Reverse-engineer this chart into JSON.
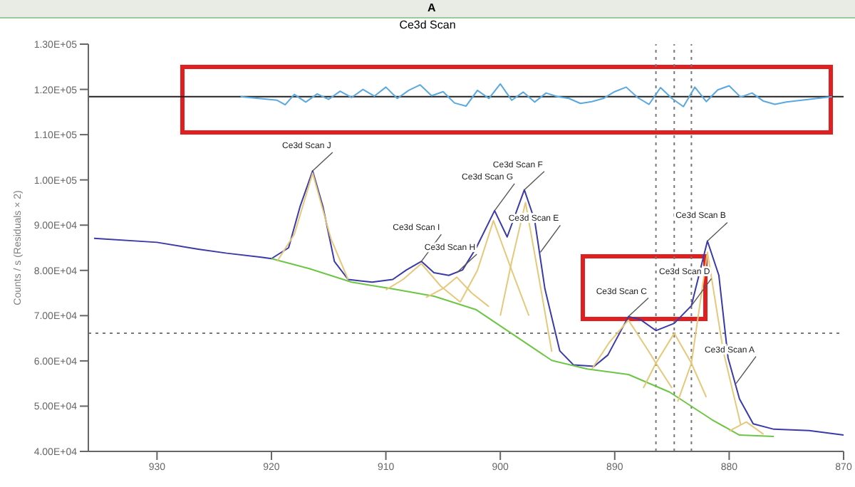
{
  "chart_data": {
    "type": "line",
    "title": "Ce3d Scan",
    "ylabel": "Counts / s  (Residuals × 2)",
    "xlim": [
      936,
      870
    ],
    "xticks": [
      930,
      920,
      910,
      900,
      890,
      880,
      870
    ],
    "ylim": [
      40000,
      130000
    ],
    "yticks": [
      {
        "value": 40000,
        "label": "4.00E+04"
      },
      {
        "value": 50000,
        "label": "5.00E+04"
      },
      {
        "value": 60000,
        "label": "6.00E+04"
      },
      {
        "value": 70000,
        "label": "7.00E+04"
      },
      {
        "value": 80000,
        "label": "8.00E+04"
      },
      {
        "value": 90000,
        "label": "9.00E+04"
      },
      {
        "value": 100000,
        "label": "1.00E+05"
      },
      {
        "value": 110000,
        "label": "1.10E+05"
      },
      {
        "value": 120000,
        "label": "1.20E+05"
      },
      {
        "value": 130000,
        "label": "1.30E+05"
      }
    ],
    "grid": false,
    "legend": false,
    "marker": "none",
    "line_style": "solid",
    "series": [
      {
        "color": "#3a3aa8",
        "x": [
          935.5,
          930,
          926.4,
          923.9,
          920.9,
          920,
          918.5,
          917.5,
          916.4,
          915.5,
          914.5,
          913.3,
          911.2,
          909.4,
          908.2,
          906.9,
          905.8,
          904.5,
          903.3,
          902.1,
          900.5,
          899.4,
          897.9,
          897,
          896.1,
          894.8,
          893.6,
          891.8,
          890.6,
          888.8,
          887.8,
          886.4,
          884.8,
          883.3,
          881.9,
          880.9,
          880.1,
          879.1,
          877.9,
          876.1,
          873,
          870
        ],
        "values": [
          87100,
          86200,
          84700,
          83800,
          82900,
          82600,
          85000,
          94100,
          102000,
          94100,
          82000,
          78000,
          77400,
          78000,
          80100,
          82000,
          79500,
          78900,
          80100,
          85000,
          93200,
          87400,
          97800,
          91100,
          75900,
          62200,
          59100,
          58800,
          61300,
          69800,
          69200,
          66700,
          68300,
          72200,
          86500,
          78900,
          60700,
          51600,
          46100,
          44900,
          44600,
          43600
        ]
      },
      {
        "color": "#6cc644",
        "x": [
          920,
          916.7,
          913,
          909.4,
          905.8,
          902.1,
          898.5,
          895.5,
          892.4,
          888.8,
          885.2,
          881.5,
          879.1,
          876.1
        ],
        "values": [
          82600,
          80400,
          77400,
          75900,
          74300,
          71300,
          65200,
          60100,
          58200,
          57000,
          53100,
          47000,
          43600,
          43300
        ]
      },
      {
        "color": "#e6c87a",
        "x": [
          919.5,
          918,
          916.4,
          914.8,
          913.3
        ],
        "values": [
          82000,
          88000,
          101500,
          87000,
          78000
        ]
      },
      {
        "color": "#e6c87a",
        "x": [
          910,
          908.5,
          906.9,
          905.2,
          903.5
        ],
        "values": [
          75700,
          78000,
          81500,
          76500,
          73000
        ]
      },
      {
        "color": "#e6c87a",
        "x": [
          906.5,
          905,
          903.8,
          902.5,
          901
        ],
        "values": [
          74000,
          76000,
          78500,
          75000,
          72000
        ]
      },
      {
        "color": "#e6c87a",
        "x": [
          903.5,
          902,
          900.6,
          899,
          897.5
        ],
        "values": [
          73000,
          80000,
          91000,
          80000,
          70000
        ]
      },
      {
        "color": "#e6c87a",
        "x": [
          900,
          899,
          897.8,
          896.6,
          895.5
        ],
        "values": [
          70000,
          82000,
          95000,
          78000,
          62000
        ]
      },
      {
        "color": "#e6c87a",
        "x": [
          892,
          890.5,
          888.8,
          887,
          886.4,
          885
        ],
        "values": [
          58200,
          64000,
          69000,
          62000,
          59500,
          54000
        ]
      },
      {
        "color": "#e6c87a",
        "x": [
          887.5,
          886.4,
          884.8,
          883.3,
          882
        ],
        "values": [
          54000,
          59500,
          66100,
          59500,
          52000
        ]
      },
      {
        "color": "#e6c87a",
        "x": [
          884.5,
          883.3,
          881.9,
          880.5,
          879
        ],
        "values": [
          51000,
          59500,
          84000,
          62000,
          46000
        ]
      },
      {
        "color": "#e6c87a",
        "x": [
          880,
          878.5,
          877
        ],
        "values": [
          44500,
          46500,
          43800
        ]
      },
      {
        "color": "#5aa8e0",
        "x": [
          922.7,
          919.5,
          918.8,
          918,
          917,
          916,
          915,
          914,
          913,
          912,
          911,
          910,
          909,
          908,
          907,
          906,
          905,
          904,
          903,
          902,
          901,
          900,
          899,
          898,
          897,
          896,
          895,
          894,
          893,
          892,
          891,
          890,
          889,
          888,
          887,
          886,
          885,
          884,
          883,
          882,
          881,
          880,
          879,
          878,
          877,
          876,
          875,
          873,
          871
        ],
        "values": [
          118400,
          117600,
          116600,
          118900,
          117200,
          119000,
          117800,
          119600,
          118200,
          120000,
          118500,
          120500,
          118000,
          119800,
          121000,
          118600,
          119500,
          117000,
          116300,
          119800,
          118000,
          121200,
          117600,
          119400,
          117200,
          119200,
          118400,
          118000,
          116900,
          117300,
          118000,
          119500,
          120500,
          118200,
          116700,
          120400,
          118000,
          116200,
          120500,
          117300,
          119900,
          120800,
          118300,
          119200,
          117400,
          116700,
          117200,
          117800,
          118400
        ]
      }
    ],
    "ref_lines": [
      {
        "axis": "y",
        "value": 118400,
        "color": "#222222",
        "line_style": "solid"
      },
      {
        "axis": "y",
        "value": 66100,
        "color": "#777777",
        "line_style": "dotted"
      },
      {
        "axis": "x",
        "value": 886.4,
        "color": "#777777",
        "line_style": "dotted"
      },
      {
        "axis": "x",
        "value": 884.8,
        "color": "#777777",
        "line_style": "dotted"
      },
      {
        "axis": "x",
        "value": 883.3,
        "color": "#777777",
        "line_style": "dotted"
      }
    ],
    "annotations": [
      "A",
      {
        "text": "Ce3d Scan J",
        "x": 916.4,
        "y": 102000
      },
      {
        "text": "Ce3d Scan I",
        "x": 906.9,
        "y": 82000
      },
      {
        "text": "Ce3d Scan H",
        "x": 903.8,
        "y": 79500
      },
      {
        "text": "Ce3d Scan G",
        "x": 900.5,
        "y": 93200
      },
      {
        "text": "Ce3d Scan F",
        "x": 897.9,
        "y": 97800
      },
      {
        "text": "Ce3d Scan E",
        "x": 896.5,
        "y": 84000
      },
      {
        "text": "Ce3d Scan C",
        "x": 888.8,
        "y": 69800
      },
      {
        "text": "Ce3d Scan D",
        "x": 883.3,
        "y": 72200
      },
      {
        "text": "Ce3d Scan B",
        "x": 881.9,
        "y": 86500
      },
      {
        "text": "Ce3d Scan A",
        "x": 879.4,
        "y": 55000
      }
    ]
  }
}
